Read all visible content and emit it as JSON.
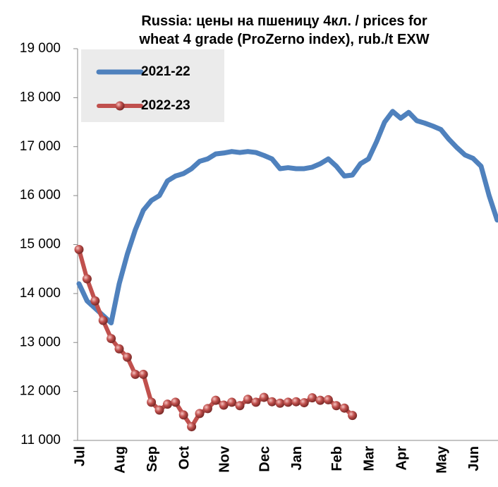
{
  "chart_data": {
    "type": "line",
    "title": [
      "Russia: цены на пшеницу 4кл. / prices for",
      "wheat 4 grade (ProZerno index), rub./t EXW"
    ],
    "categories": [
      "Jul",
      null,
      null,
      null,
      null,
      "Aug",
      null,
      null,
      null,
      "Sep",
      null,
      null,
      null,
      "Oct",
      null,
      null,
      null,
      null,
      "Nov",
      null,
      null,
      null,
      null,
      "Dec",
      null,
      null,
      null,
      "Jan",
      null,
      null,
      null,
      null,
      "Feb",
      null,
      null,
      null,
      "Mar",
      null,
      null,
      null,
      "Apr",
      null,
      null,
      null,
      null,
      "May",
      null,
      null,
      null,
      "Jun",
      null,
      null,
      null
    ],
    "series": [
      {
        "name": "2021-22",
        "color": "#4f81bd",
        "values": [
          14200,
          13850,
          13700,
          13550,
          13400,
          14200,
          14800,
          15300,
          15700,
          15900,
          16000,
          16300,
          16400,
          16450,
          16550,
          16700,
          16750,
          16850,
          16870,
          16900,
          16880,
          16900,
          16880,
          16820,
          16750,
          16550,
          16570,
          16550,
          16550,
          16580,
          16650,
          16750,
          16600,
          16400,
          16420,
          16650,
          16750,
          17100,
          17500,
          17720,
          17580,
          17700,
          17530,
          17480,
          17420,
          17350,
          17150,
          16980,
          16830,
          16760,
          16600,
          16000,
          15500
        ]
      },
      {
        "name": "2022-23",
        "color": "#c0504d",
        "values": [
          14900,
          14300,
          13850,
          13450,
          13080,
          12870,
          12700,
          12350,
          12350,
          11780,
          11620,
          11740,
          11780,
          11520,
          11280,
          11550,
          11650,
          11820,
          11720,
          11780,
          11710,
          11840,
          11780,
          11880,
          11790,
          11760,
          11780,
          11790,
          11770,
          11870,
          11820,
          11830,
          11710,
          11660,
          11510,
          null,
          null,
          null,
          null,
          null,
          null,
          null,
          null,
          null,
          null,
          null,
          null,
          null,
          null,
          null,
          null,
          null,
          null
        ]
      }
    ],
    "ylim": [
      11000,
      19000
    ],
    "yticks": [
      {
        "value": 11000,
        "label": "11 000"
      },
      {
        "value": 12000,
        "label": "12 000"
      },
      {
        "value": 13000,
        "label": "13 000"
      },
      {
        "value": 14000,
        "label": "14 000"
      },
      {
        "value": 15000,
        "label": "15 000"
      },
      {
        "value": 16000,
        "label": "16 000"
      },
      {
        "value": 17000,
        "label": "17 000"
      },
      {
        "value": 18000,
        "label": "18 000"
      },
      {
        "value": 19000,
        "label": "19 000"
      }
    ],
    "grid": false
  }
}
